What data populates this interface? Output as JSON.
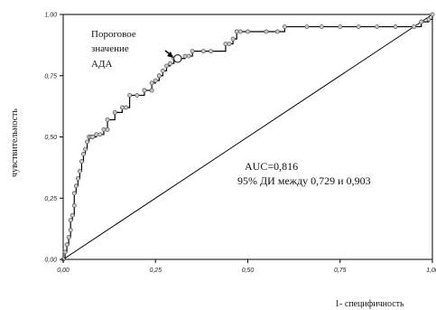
{
  "chart_data": {
    "type": "line",
    "xlabel": "1- специфичность",
    "ylabel": "чувствительность",
    "xlim": [
      0,
      1
    ],
    "ylim": [
      0,
      1
    ],
    "xticks": [
      "0,00",
      "0,25",
      "0,50",
      "0,75",
      "1,00"
    ],
    "yticks": [
      "0,00",
      "0,25",
      "0,50",
      "0,75",
      "1,00"
    ],
    "grid": false,
    "legend": "none",
    "series": [
      {
        "style": "step-with-markers",
        "x": [
          0.0,
          0.005,
          0.01,
          0.015,
          0.02,
          0.02,
          0.025,
          0.03,
          0.03,
          0.035,
          0.04,
          0.045,
          0.05,
          0.055,
          0.06,
          0.065,
          0.07,
          0.075,
          0.08,
          0.09,
          0.1,
          0.11,
          0.12,
          0.12,
          0.14,
          0.16,
          0.17,
          0.18,
          0.2,
          0.22,
          0.24,
          0.24,
          0.25,
          0.26,
          0.27,
          0.28,
          0.29,
          0.3,
          0.31,
          0.33,
          0.34,
          0.35,
          0.38,
          0.4,
          0.44,
          0.45,
          0.46,
          0.47,
          0.48,
          0.5,
          0.55,
          0.58,
          0.6,
          0.66,
          0.7,
          0.75,
          0.8,
          0.85,
          0.9,
          0.95,
          0.97,
          0.99,
          1.0
        ],
        "y": [
          0.0,
          0.03,
          0.06,
          0.09,
          0.12,
          0.16,
          0.18,
          0.22,
          0.27,
          0.3,
          0.33,
          0.36,
          0.4,
          0.43,
          0.45,
          0.48,
          0.5,
          0.5,
          0.5,
          0.51,
          0.51,
          0.53,
          0.53,
          0.57,
          0.6,
          0.62,
          0.62,
          0.67,
          0.67,
          0.69,
          0.69,
          0.72,
          0.73,
          0.75,
          0.77,
          0.79,
          0.8,
          0.82,
          0.82,
          0.83,
          0.83,
          0.85,
          0.85,
          0.85,
          0.88,
          0.88,
          0.9,
          0.93,
          0.93,
          0.93,
          0.93,
          0.93,
          0.95,
          0.95,
          0.95,
          0.95,
          0.95,
          0.95,
          0.95,
          0.95,
          0.97,
          0.98,
          1.0
        ]
      }
    ],
    "reference_line": {
      "x": [
        0,
        1
      ],
      "y": [
        0,
        1
      ]
    },
    "threshold_point": {
      "x": 0.31,
      "y": 0.82
    },
    "annotations": {
      "threshold_label": [
        "Пороговое",
        "значение",
        "АДА"
      ],
      "auc": "AUC=0,816",
      "ci": "95% ДИ между 0,729 и 0,903"
    }
  }
}
